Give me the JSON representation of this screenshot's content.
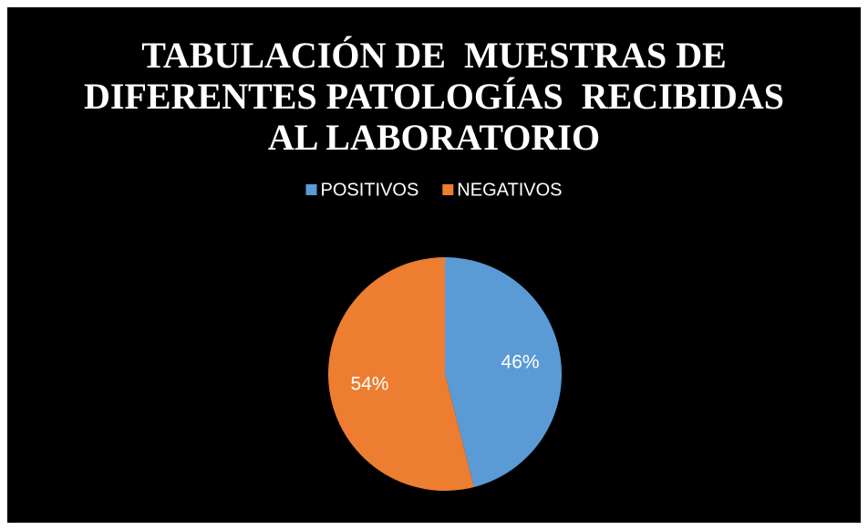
{
  "chart_data": {
    "type": "pie",
    "title": "TABULACIÓN DE  MUESTRAS DE\nDIFERENTES PATOLOGÍAS  RECIBIDAS\nAL LABORATORIO",
    "categories": [
      "POSITIVOS",
      "NEGATIVOS"
    ],
    "values": [
      46,
      54
    ],
    "value_labels": [
      "46%",
      "54%"
    ],
    "colors": [
      "#5b9bd5",
      "#ed7d31"
    ],
    "legend": "top"
  }
}
